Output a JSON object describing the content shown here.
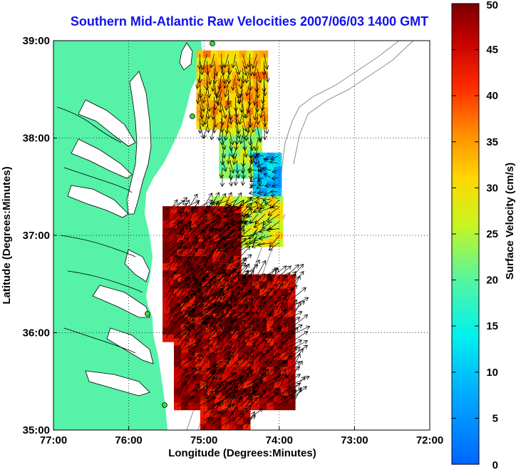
{
  "title": "Southern Mid-Atlantic Raw Velocities 2007/06/03 1400 GMT",
  "x_axis": {
    "label": "Longitude (Degrees:Minutes)",
    "ticks": [
      "77:00",
      "76:00",
      "75:00",
      "74:00",
      "73:00",
      "72:00"
    ]
  },
  "y_axis": {
    "label": "Latitude (Degrees:Minutes)",
    "ticks": [
      "39:00",
      "38:00",
      "37:00",
      "36:00",
      "35:00"
    ]
  },
  "colorbar": {
    "label": "Surface Velocity (cm/s)",
    "ticks": [
      "50",
      "45",
      "40",
      "35",
      "30",
      "25",
      "20",
      "15",
      "10",
      "5",
      "0"
    ],
    "min": 0,
    "max": 50,
    "colormap": "jet"
  },
  "colors": {
    "land": "#55f2a8",
    "coastline": "#000000",
    "bathymetry": "#8c8c8c",
    "grid": "#000000",
    "arrows": "#000000",
    "stations": "#33dd33",
    "title": "#1111ee"
  },
  "grid": true,
  "chart_data": {
    "type": "heatmap",
    "title": "Southern Mid-Atlantic Raw Velocities 2007/06/03 1400 GMT",
    "xlabel": "Longitude (Degrees:Minutes)",
    "ylabel": "Latitude (Degrees:Minutes)",
    "xlim": [
      -77,
      -72
    ],
    "ylim": [
      35,
      39
    ],
    "color_range": [
      0,
      50
    ],
    "color_unit": "cm/s",
    "regions": [
      {
        "lon": [
          -75.1,
          -74.2
        ],
        "lat": [
          38.1,
          38.9
        ],
        "speed": 33
      },
      {
        "lon": [
          -74.8,
          -74.3
        ],
        "lat": [
          37.6,
          38.1
        ],
        "speed": 24
      },
      {
        "lon": [
          -74.35,
          -74.05
        ],
        "lat": [
          37.3,
          37.85
        ],
        "speed": 10
      },
      {
        "lon": [
          -74.9,
          -74.0
        ],
        "lat": [
          36.9,
          37.4
        ],
        "speed": 28
      },
      {
        "lon": [
          -75.55,
          -74.6
        ],
        "lat": [
          35.95,
          37.3
        ],
        "speed": 48
      },
      {
        "lon": [
          -75.4,
          -73.8
        ],
        "lat": [
          35.25,
          36.6
        ],
        "speed": 47
      },
      {
        "lon": [
          -75.05,
          -74.4
        ],
        "lat": [
          35.05,
          35.5
        ],
        "speed": 46
      }
    ]
  }
}
